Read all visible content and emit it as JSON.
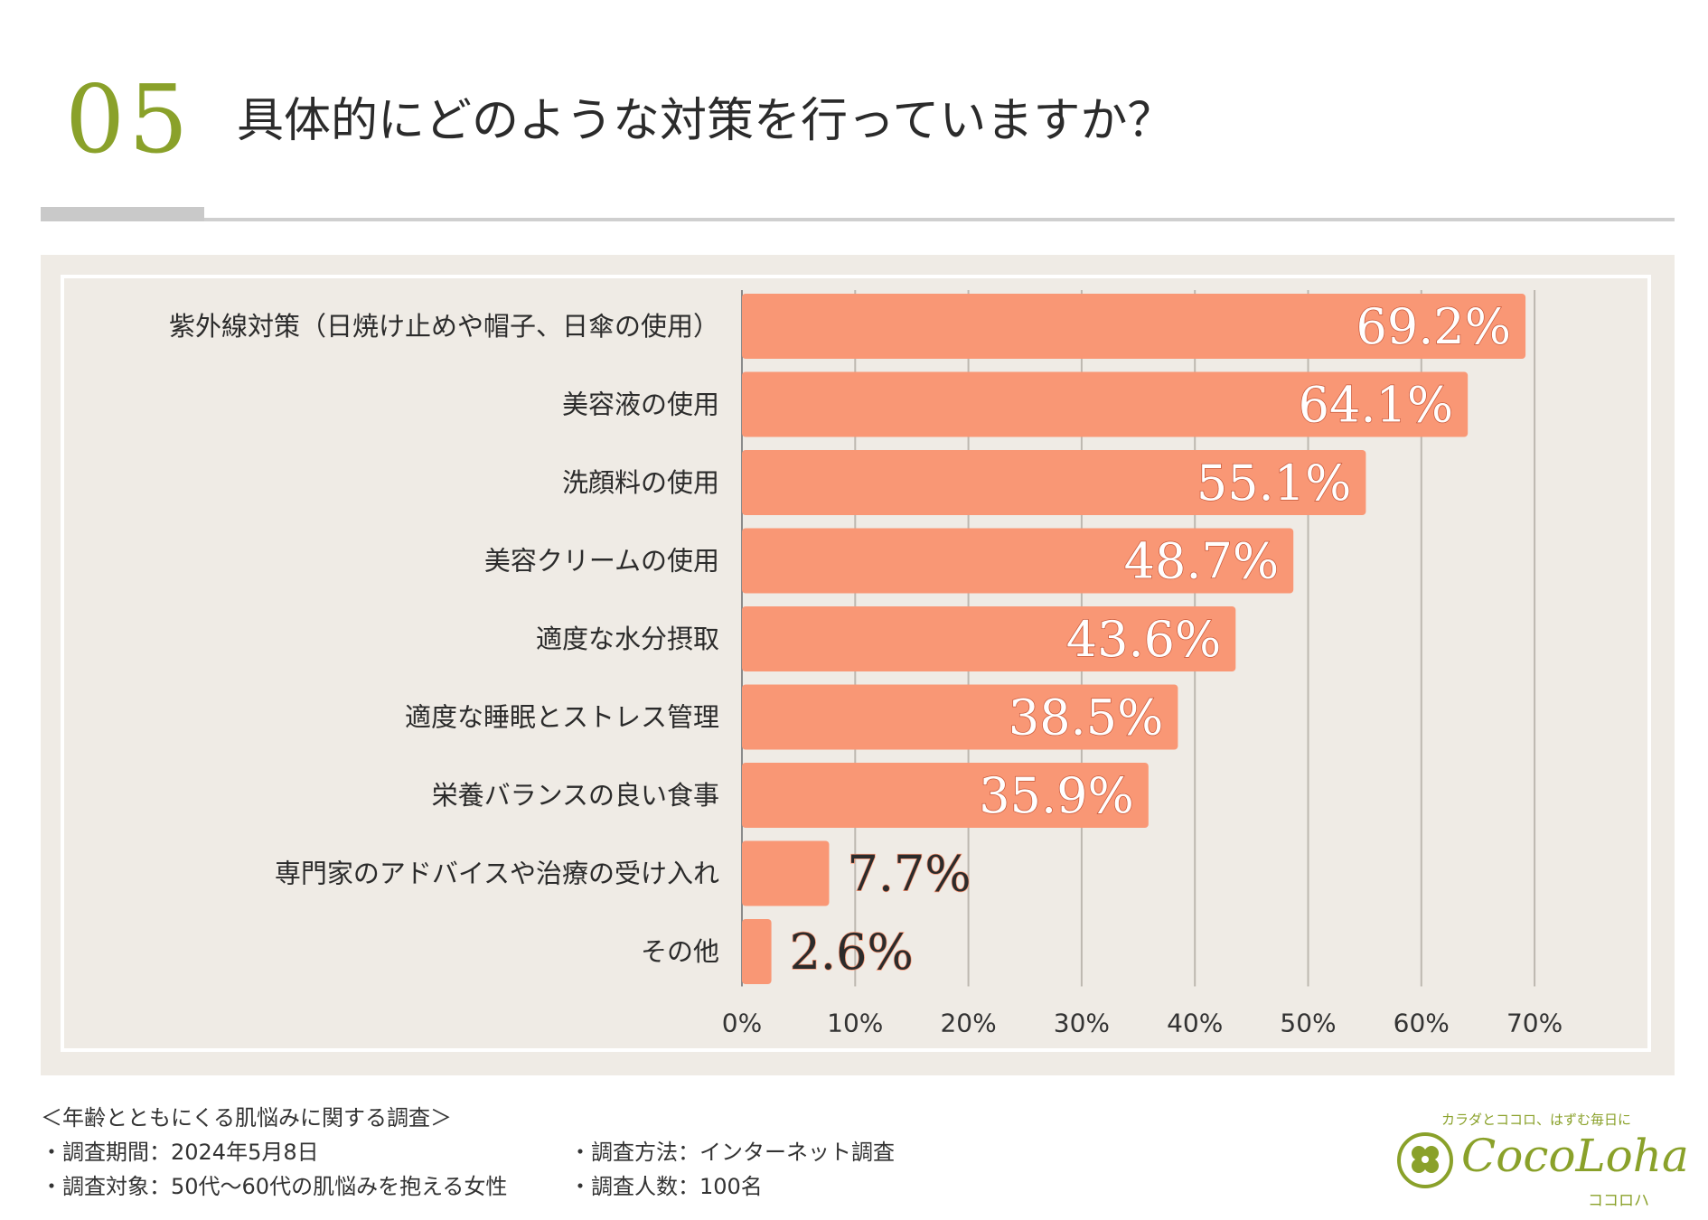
{
  "header": {
    "number": "05",
    "question": "具体的にどのような対策を行っていますか？"
  },
  "colors": {
    "accent": "#8aa12a",
    "bar": "#f99775",
    "panel_bg": "#efebe5"
  },
  "chart_data": {
    "type": "bar",
    "orientation": "horizontal",
    "categories": [
      "紫外線対策（日焼け止めや帽子、日傘の使用）",
      "美容液の使用",
      "洗顔料の使用",
      "美容クリームの使用",
      "適度な水分摂取",
      "適度な睡眠とストレス管理",
      "栄養バランスの良い食事",
      "専門家のアドバイスや治療の受け入れ",
      "その他"
    ],
    "values": [
      69.2,
      64.1,
      55.1,
      48.7,
      43.6,
      38.5,
      35.9,
      7.7,
      2.6
    ],
    "value_labels": [
      "69.2%",
      "64.1%",
      "55.1%",
      "48.7%",
      "43.6%",
      "38.5%",
      "35.9%",
      "7.7%",
      "2.6%"
    ],
    "x_ticks": [
      "0%",
      "10%",
      "20%",
      "30%",
      "40%",
      "50%",
      "60%",
      "70%"
    ],
    "xlim": [
      0,
      70
    ],
    "grid": true
  },
  "footer": {
    "survey_title": "＜年齢とともにくる肌悩みに関する調査＞",
    "period": "・調査期間：2024年5月8日",
    "method": "・調査方法：インターネット調査",
    "target": "・調査対象：50代～60代の肌悩みを抱える女性",
    "count": "・調査人数：100名"
  },
  "logo": {
    "tagline": "カラダとココロ、はずむ毎日に",
    "brand": "CocoLoha",
    "kana": "ココロハ"
  }
}
